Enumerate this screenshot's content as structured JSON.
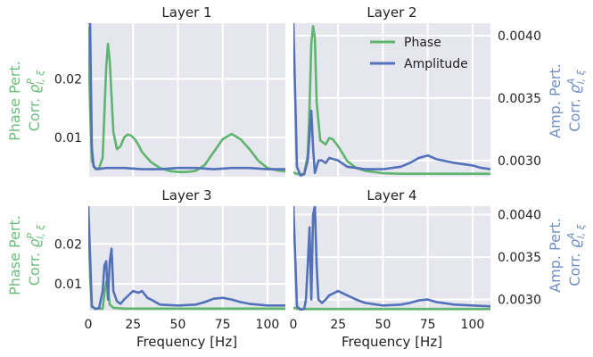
{
  "colors": {
    "phase": "#5fb56f",
    "amplitude": "#5271b8",
    "panel_bg": "#e6e6ee",
    "grid": "#ffffff",
    "phase_label": "#6bbd7b",
    "amp_label": "#6f8fc6"
  },
  "left_axis_label": {
    "line1": "Phase Pert.",
    "line2_prefix": "Corr. ",
    "symbol": "ϱ",
    "sup": "P",
    "sub": "l, ξ"
  },
  "right_axis_label": {
    "line1": "Amp. Pert.",
    "line2_prefix": "Corr. ",
    "symbol": "ϱ",
    "sup": "A",
    "sub": "l, ξ"
  },
  "legend": {
    "phase": "Phase",
    "amplitude": "Amplitude"
  },
  "chart_data": [
    {
      "type": "line",
      "title": "Layer 1",
      "xlabel": "",
      "xlim": [
        0,
        110
      ],
      "ylim_left": [
        0.0033,
        0.0295
      ],
      "ylim_right": [
        0.00287,
        0.0041
      ],
      "x_ticks": [
        0,
        25,
        50,
        75,
        100
      ],
      "y_left_ticks": [
        "0.01",
        "0.02"
      ],
      "y_right_ticks": [],
      "series": [
        {
          "name": "Phase",
          "axis": "left",
          "x": [
            0,
            1,
            2,
            4,
            6,
            8,
            10,
            11,
            12,
            14,
            16,
            18,
            20,
            22,
            24,
            26,
            28,
            30,
            35,
            40,
            45,
            50,
            55,
            60,
            65,
            70,
            75,
            80,
            85,
            90,
            95,
            100,
            105,
            110
          ],
          "y": [
            0.029,
            0.015,
            0.006,
            0.0046,
            0.0048,
            0.0065,
            0.022,
            0.026,
            0.023,
            0.011,
            0.008,
            0.0085,
            0.01,
            0.0105,
            0.0103,
            0.0097,
            0.0087,
            0.0075,
            0.0058,
            0.0048,
            0.0043,
            0.0041,
            0.0041,
            0.0043,
            0.0053,
            0.0075,
            0.0097,
            0.0106,
            0.0097,
            0.008,
            0.006,
            0.0048,
            0.0044,
            0.0042
          ]
        },
        {
          "name": "Amplitude",
          "axis": "right",
          "x": [
            0,
            1,
            2,
            3,
            5,
            10,
            20,
            30,
            40,
            50,
            60,
            70,
            80,
            90,
            100,
            110
          ],
          "y": [
            0.0041,
            0.0041,
            0.0031,
            0.00295,
            0.00293,
            0.00294,
            0.00294,
            0.00293,
            0.00293,
            0.00294,
            0.00294,
            0.00293,
            0.00294,
            0.00294,
            0.00293,
            0.00293
          ]
        }
      ]
    },
    {
      "type": "line",
      "title": "Layer 2",
      "xlabel": "",
      "xlim": [
        0,
        110
      ],
      "ylim_left": [
        0.0033,
        0.0295
      ],
      "ylim_right": [
        0.00287,
        0.0041
      ],
      "x_ticks": [
        0,
        25,
        50,
        75,
        100
      ],
      "y_left_ticks": [],
      "y_right_ticks": [
        "0.0030",
        "0.0035",
        "0.0040"
      ],
      "series": [
        {
          "name": "Phase",
          "axis": "left",
          "x": [
            0,
            2,
            4,
            6,
            8,
            9,
            10,
            11,
            12,
            13,
            15,
            18,
            20,
            22,
            25,
            28,
            30,
            35,
            40,
            50,
            60,
            70,
            80,
            90,
            100,
            110
          ],
          "y": [
            0.004,
            0.0038,
            0.0037,
            0.0038,
            0.007,
            0.015,
            0.026,
            0.029,
            0.027,
            0.016,
            0.0095,
            0.0088,
            0.0099,
            0.0097,
            0.0085,
            0.007,
            0.006,
            0.0048,
            0.0043,
            0.0039,
            0.0038,
            0.0038,
            0.0038,
            0.0038,
            0.0038,
            0.0038
          ]
        },
        {
          "name": "Amplitude",
          "axis": "right",
          "x": [
            0,
            2,
            4,
            6,
            8,
            9,
            10,
            11,
            12,
            14,
            16,
            18,
            20,
            25,
            30,
            40,
            50,
            60,
            65,
            70,
            75,
            80,
            90,
            100,
            105,
            110
          ],
          "y": [
            0.0041,
            0.00295,
            0.00288,
            0.00289,
            0.003,
            0.0032,
            0.0034,
            0.0031,
            0.0029,
            0.003,
            0.003,
            0.00298,
            0.00302,
            0.003,
            0.00295,
            0.00293,
            0.00293,
            0.00295,
            0.00298,
            0.00302,
            0.00304,
            0.00301,
            0.00298,
            0.00296,
            0.00294,
            0.00293
          ]
        }
      ]
    },
    {
      "type": "line",
      "title": "Layer 3",
      "xlabel": "Frequency [Hz]",
      "xlim": [
        0,
        110
      ],
      "ylim_left": [
        0.0033,
        0.0295
      ],
      "ylim_right": [
        0.00287,
        0.0041
      ],
      "x_ticks": [
        0,
        25,
        50,
        75,
        100
      ],
      "y_left_ticks": [
        "0.01",
        "0.02"
      ],
      "y_right_ticks": [],
      "series": [
        {
          "name": "Phase",
          "axis": "left",
          "x": [
            0,
            1,
            2,
            4,
            8,
            9,
            10,
            11,
            12,
            14,
            20,
            30,
            50,
            70,
            90,
            110
          ],
          "y": [
            0.029,
            0.012,
            0.0042,
            0.0038,
            0.0038,
            0.0075,
            0.0105,
            0.009,
            0.0048,
            0.004,
            0.0038,
            0.0038,
            0.0038,
            0.0038,
            0.0038,
            0.0038
          ]
        },
        {
          "name": "Amplitude",
          "axis": "right",
          "x": [
            0,
            2,
            4,
            6,
            8,
            9,
            10,
            11,
            12,
            13,
            14,
            16,
            18,
            20,
            25,
            28,
            30,
            33,
            35,
            40,
            50,
            60,
            65,
            70,
            75,
            80,
            85,
            90,
            100,
            110
          ],
          "y": [
            0.0041,
            0.00292,
            0.00289,
            0.0029,
            0.0031,
            0.0034,
            0.00345,
            0.003,
            0.00345,
            0.0036,
            0.0031,
            0.00298,
            0.00295,
            0.003,
            0.0031,
            0.00308,
            0.0031,
            0.00302,
            0.003,
            0.00294,
            0.00293,
            0.00294,
            0.00297,
            0.00301,
            0.00302,
            0.003,
            0.00297,
            0.00295,
            0.00293,
            0.00293
          ]
        }
      ]
    },
    {
      "type": "line",
      "title": "Layer 4",
      "xlabel": "Frequency [Hz]",
      "xlim": [
        0,
        110
      ],
      "ylim_left": [
        0.0033,
        0.0295
      ],
      "ylim_right": [
        0.00287,
        0.0041
      ],
      "x_ticks": [
        0,
        25,
        50,
        75,
        100
      ],
      "y_left_ticks": [],
      "y_right_ticks": [
        "0.0030",
        "0.0035",
        "0.0040"
      ],
      "series": [
        {
          "name": "Phase",
          "axis": "left",
          "x": [
            0,
            1,
            2,
            4,
            10,
            20,
            40,
            60,
            80,
            100,
            110
          ],
          "y": [
            0.004,
            0.0039,
            0.0038,
            0.0037,
            0.0037,
            0.0037,
            0.0037,
            0.0037,
            0.0037,
            0.0037,
            0.0037
          ]
        },
        {
          "name": "Amplitude",
          "axis": "right",
          "x": [
            0,
            2,
            4,
            6,
            7,
            8,
            9,
            10,
            11,
            12,
            13,
            14,
            16,
            18,
            20,
            25,
            30,
            35,
            40,
            50,
            60,
            65,
            70,
            75,
            80,
            90,
            100,
            110
          ],
          "y": [
            0.0041,
            0.00292,
            0.00288,
            0.00289,
            0.003,
            0.0034,
            0.00385,
            0.003,
            0.004,
            0.0041,
            0.0034,
            0.003,
            0.00296,
            0.003,
            0.00305,
            0.0031,
            0.00305,
            0.003,
            0.00296,
            0.00293,
            0.00294,
            0.00296,
            0.00299,
            0.003,
            0.00297,
            0.00294,
            0.00293,
            0.00292
          ]
        }
      ]
    }
  ]
}
